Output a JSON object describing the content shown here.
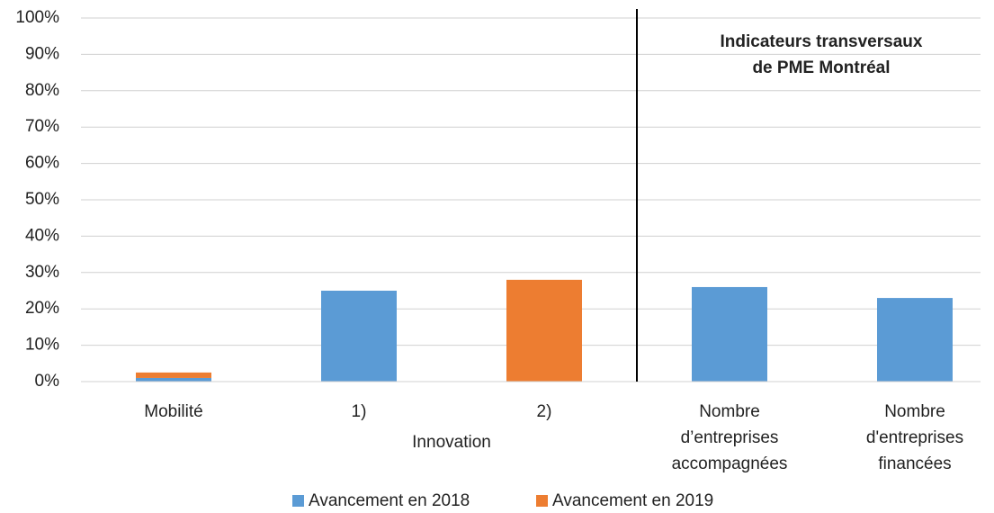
{
  "chart_data": {
    "type": "stacked_bar",
    "categories": [
      [
        "Mobilité"
      ],
      [
        "1)"
      ],
      [
        "2)"
      ],
      [
        "Nombre",
        "d’entreprises",
        "accompagnées"
      ],
      [
        "Nombre",
        "d'entreprises",
        "financées"
      ]
    ],
    "group_label": "Innovation",
    "annotation": [
      "Indicateurs transversaux",
      "de PME Montréal"
    ],
    "series": [
      {
        "name": "Avancement en 2018",
        "color": "#5b9bd5",
        "values": [
          1,
          25,
          null,
          26,
          23
        ]
      },
      {
        "name": "Avancement en 2019",
        "color": "#ed7d31",
        "values": [
          1.5,
          null,
          28,
          null,
          null
        ]
      }
    ],
    "ylim": [
      0,
      100
    ],
    "yticks": [
      {
        "value": 0,
        "label": "0%"
      },
      {
        "value": 10,
        "label": "10%"
      },
      {
        "value": 20,
        "label": "20%"
      },
      {
        "value": 30,
        "label": "30%"
      },
      {
        "value": 40,
        "label": "40%"
      },
      {
        "value": 50,
        "label": "50%"
      },
      {
        "value": 60,
        "label": "60%"
      },
      {
        "value": 70,
        "label": "70%"
      },
      {
        "value": 80,
        "label": "80%"
      },
      {
        "value": 90,
        "label": "90%"
      },
      {
        "value": 100,
        "label": "100%"
      }
    ],
    "grid": true,
    "legend": "bottom"
  }
}
